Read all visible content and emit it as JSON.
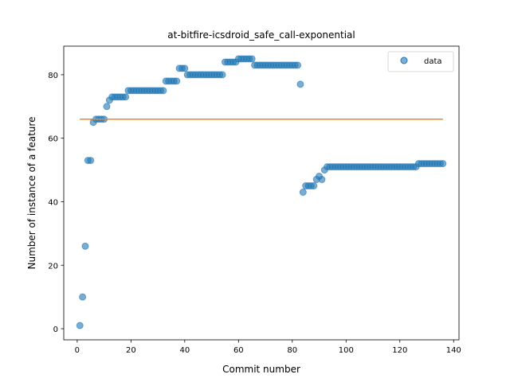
{
  "chart_data": {
    "type": "scatter",
    "title": "at-bitfire-icsdroid_safe_call-exponential",
    "xlabel": "Commit number",
    "ylabel": "Number of instance of a feature",
    "xlim": [
      -5,
      142
    ],
    "ylim": [
      -3.5,
      89
    ],
    "xticks": [
      0,
      20,
      40,
      60,
      80,
      100,
      120,
      140
    ],
    "yticks": [
      0,
      20,
      40,
      60,
      80
    ],
    "legend": {
      "position": "top-right",
      "entries": [
        "data"
      ]
    },
    "grid": false,
    "series": [
      {
        "name": "data",
        "kind": "scatter",
        "color": "#1f77b4",
        "x": [
          1,
          2,
          3,
          4,
          5,
          6,
          7,
          8,
          9,
          10,
          11,
          12,
          13,
          14,
          15,
          16,
          17,
          18,
          19,
          20,
          21,
          22,
          23,
          24,
          25,
          26,
          27,
          28,
          29,
          30,
          31,
          32,
          33,
          34,
          35,
          36,
          37,
          38,
          39,
          40,
          41,
          42,
          43,
          44,
          45,
          46,
          47,
          48,
          49,
          50,
          51,
          52,
          53,
          54,
          55,
          56,
          57,
          58,
          59,
          60,
          61,
          62,
          63,
          64,
          65,
          66,
          67,
          68,
          69,
          70,
          71,
          72,
          73,
          74,
          75,
          76,
          77,
          78,
          79,
          80,
          81,
          82,
          83,
          84,
          85,
          86,
          87,
          88,
          89,
          90,
          91,
          92,
          93,
          94,
          95,
          96,
          97,
          98,
          99,
          100,
          101,
          102,
          103,
          104,
          105,
          106,
          107,
          108,
          109,
          110,
          111,
          112,
          113,
          114,
          115,
          116,
          117,
          118,
          119,
          120,
          121,
          122,
          123,
          124,
          125,
          126,
          127,
          128,
          129,
          130,
          131,
          132,
          133,
          134,
          135,
          136
        ],
        "y": [
          1,
          10,
          26,
          53,
          53,
          65,
          66,
          66,
          66,
          66,
          70,
          72,
          73,
          73,
          73,
          73,
          73,
          73,
          75,
          75,
          75,
          75,
          75,
          75,
          75,
          75,
          75,
          75,
          75,
          75,
          75,
          75,
          78,
          78,
          78,
          78,
          78,
          82,
          82,
          82,
          80,
          80,
          80,
          80,
          80,
          80,
          80,
          80,
          80,
          80,
          80,
          80,
          80,
          80,
          84,
          84,
          84,
          84,
          84,
          85,
          85,
          85,
          85,
          85,
          85,
          83,
          83,
          83,
          83,
          83,
          83,
          83,
          83,
          83,
          83,
          83,
          83,
          83,
          83,
          83,
          83,
          83,
          77,
          43,
          45,
          45,
          45,
          45,
          47,
          48,
          47,
          50,
          51,
          51,
          51,
          51,
          51,
          51,
          51,
          51,
          51,
          51,
          51,
          51,
          51,
          51,
          51,
          51,
          51,
          51,
          51,
          51,
          51,
          51,
          51,
          51,
          51,
          51,
          51,
          51,
          51,
          51,
          51,
          51,
          51,
          51,
          52,
          52,
          52,
          52,
          52,
          52,
          52,
          52,
          52,
          52
        ]
      },
      {
        "name": "",
        "kind": "line",
        "color": "#ff7f0e",
        "x": [
          1,
          136
        ],
        "y": [
          66,
          66
        ]
      }
    ]
  }
}
